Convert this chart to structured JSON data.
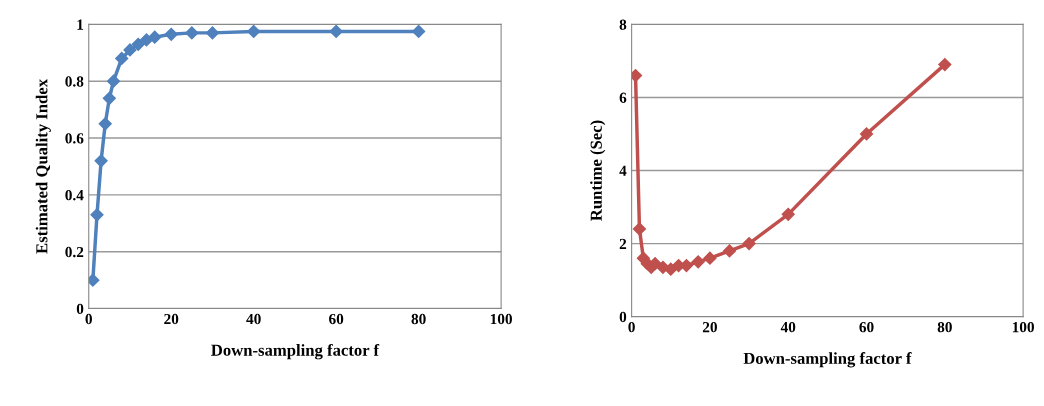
{
  "chart_data": [
    {
      "type": "line",
      "xlabel": "Down-sampling factor f",
      "ylabel": "Estimated Quality Index",
      "xlim": [
        0,
        100
      ],
      "xticks": [
        0,
        20,
        40,
        60,
        80,
        100
      ],
      "ylim": [
        0,
        1
      ],
      "yticks": [
        0,
        0.2,
        0.4,
        0.6,
        0.8,
        1
      ],
      "grid": "y",
      "marker": "diamond",
      "line_style": "solid",
      "series": [
        {
          "color": "#4f81bd",
          "x": [
            1,
            2,
            3,
            4,
            5,
            6,
            8,
            10,
            12,
            14,
            16,
            20,
            25,
            30,
            40,
            60,
            80
          ],
          "values": [
            0.1,
            0.33,
            0.52,
            0.65,
            0.74,
            0.8,
            0.88,
            0.91,
            0.93,
            0.945,
            0.955,
            0.965,
            0.97,
            0.97,
            0.975,
            0.975,
            0.975
          ]
        }
      ]
    },
    {
      "type": "line",
      "xlabel": "Down-sampling factor f",
      "ylabel": "Runtime (Sec)",
      "xlim": [
        0,
        100
      ],
      "xticks": [
        0,
        20,
        40,
        60,
        80,
        100
      ],
      "ylim": [
        0,
        8
      ],
      "yticks": [
        0,
        2,
        4,
        6,
        8
      ],
      "grid": "y",
      "marker": "diamond",
      "line_style": "solid",
      "series": [
        {
          "color": "#c0504d",
          "x": [
            1,
            2,
            3,
            4,
            5,
            6,
            8,
            10,
            12,
            14,
            17,
            20,
            25,
            30,
            40,
            60,
            80
          ],
          "values": [
            6.6,
            2.4,
            1.6,
            1.45,
            1.35,
            1.45,
            1.35,
            1.3,
            1.4,
            1.4,
            1.5,
            1.6,
            1.8,
            2.0,
            2.8,
            5.0,
            6.9
          ]
        }
      ]
    }
  ]
}
